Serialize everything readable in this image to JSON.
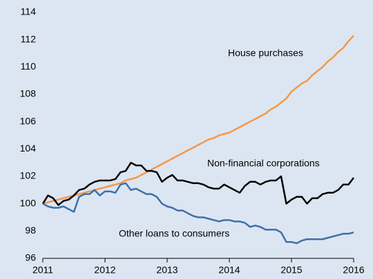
{
  "chart_data": {
    "type": "line",
    "x": [
      2011,
      2011.083,
      2011.167,
      2011.25,
      2011.333,
      2011.417,
      2011.5,
      2011.583,
      2011.667,
      2011.75,
      2011.833,
      2011.917,
      2012,
      2012.083,
      2012.167,
      2012.25,
      2012.333,
      2012.417,
      2012.5,
      2012.583,
      2012.667,
      2012.75,
      2012.833,
      2012.917,
      2013,
      2013.083,
      2013.167,
      2013.25,
      2013.333,
      2013.417,
      2013.5,
      2013.583,
      2013.667,
      2013.75,
      2013.833,
      2013.917,
      2014,
      2014.083,
      2014.167,
      2014.25,
      2014.333,
      2014.417,
      2014.5,
      2014.583,
      2014.667,
      2014.75,
      2014.833,
      2014.917,
      2015,
      2015.083,
      2015.167,
      2015.25,
      2015.333,
      2015.417,
      2015.5,
      2015.583,
      2015.667,
      2015.75,
      2015.833,
      2015.917,
      2016
    ],
    "series": [
      {
        "name": "House purchases",
        "color": "#f79646",
        "values": [
          100.0,
          100.1,
          100.2,
          100.3,
          100.4,
          100.5,
          100.6,
          100.7,
          100.8,
          100.9,
          101.0,
          101.1,
          101.2,
          101.3,
          101.4,
          101.5,
          101.7,
          101.8,
          101.9,
          102.1,
          102.3,
          102.5,
          102.7,
          102.9,
          103.1,
          103.3,
          103.5,
          103.7,
          103.9,
          104.1,
          104.3,
          104.5,
          104.7,
          104.8,
          105.0,
          105.1,
          105.2,
          105.4,
          105.6,
          105.8,
          106.0,
          106.2,
          106.4,
          106.6,
          106.9,
          107.1,
          107.4,
          107.7,
          108.2,
          108.5,
          108.8,
          109.0,
          109.4,
          109.7,
          110.0,
          110.4,
          110.7,
          111.1,
          111.4,
          111.9,
          112.3
        ]
      },
      {
        "name": "Non-financial corporations",
        "color": "#000000",
        "values": [
          100.0,
          100.6,
          100.4,
          99.9,
          100.2,
          100.3,
          100.6,
          101.0,
          101.1,
          101.4,
          101.6,
          101.7,
          101.7,
          101.7,
          101.8,
          102.3,
          102.4,
          103.0,
          102.8,
          102.8,
          102.4,
          102.4,
          102.3,
          101.6,
          101.9,
          102.1,
          101.7,
          101.7,
          101.6,
          101.5,
          101.5,
          101.4,
          101.2,
          101.1,
          101.1,
          101.4,
          101.2,
          101.0,
          100.8,
          101.3,
          101.6,
          101.6,
          101.4,
          101.6,
          101.7,
          101.7,
          102.0,
          100.0,
          100.3,
          100.5,
          100.5,
          100.0,
          100.4,
          100.4,
          100.7,
          100.8,
          100.8,
          101.0,
          101.4,
          101.4,
          101.9
        ]
      },
      {
        "name": "Other loans to consumers",
        "color": "#3f6fa8",
        "values": [
          100.0,
          99.8,
          99.7,
          99.7,
          99.8,
          99.6,
          99.4,
          100.5,
          100.7,
          100.7,
          101.0,
          100.6,
          100.9,
          100.9,
          100.8,
          101.4,
          101.5,
          101.0,
          101.1,
          100.9,
          100.7,
          100.7,
          100.5,
          100.0,
          99.8,
          99.7,
          99.5,
          99.5,
          99.3,
          99.1,
          99.0,
          99.0,
          98.9,
          98.8,
          98.7,
          98.8,
          98.8,
          98.7,
          98.7,
          98.6,
          98.3,
          98.4,
          98.3,
          98.1,
          98.1,
          98.1,
          97.9,
          97.2,
          97.2,
          97.1,
          97.3,
          97.4,
          97.4,
          97.4,
          97.4,
          97.5,
          97.6,
          97.7,
          97.8,
          97.8,
          97.9
        ]
      }
    ],
    "xlim": [
      2011,
      2016
    ],
    "xticks": [
      2011,
      2012,
      2013,
      2014,
      2015,
      2016
    ],
    "ylim": [
      96,
      114
    ],
    "yticks": [
      96,
      98,
      100,
      102,
      104,
      106,
      108,
      110,
      112,
      114
    ],
    "grid": false
  }
}
